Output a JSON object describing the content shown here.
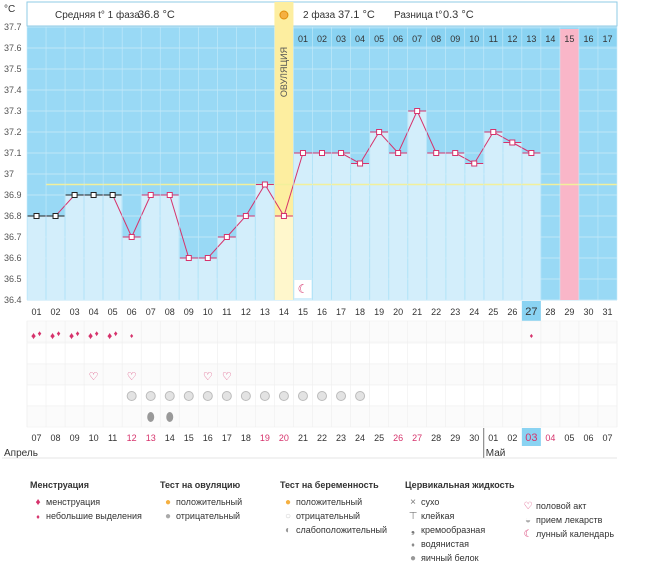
{
  "chart_data": {
    "type": "line",
    "y_unit_label": "°C",
    "header": {
      "phase1_label": "Средняя t° 1 фаза",
      "phase1_value": "36.8 °C",
      "phase2_label": "2 фаза",
      "phase2_value": "37.1 °C",
      "diff_label": "Разница t°",
      "diff_value": "0.3 °C"
    },
    "ylim": [
      36.4,
      37.7
    ],
    "y_ticks": [
      "36.4",
      "36.5",
      "36.6",
      "36.7",
      "36.8",
      "36.9",
      "37",
      "37.1",
      "37.2",
      "37.3",
      "37.4",
      "37.5",
      "37.6",
      "37.7"
    ],
    "coverline": 36.95,
    "cycle_days": [
      "01",
      "02",
      "03",
      "04",
      "05",
      "06",
      "07",
      "08",
      "09",
      "10",
      "11",
      "12",
      "13",
      "14",
      "15",
      "16",
      "17",
      "18",
      "19",
      "20",
      "21",
      "22",
      "23",
      "24",
      "25",
      "26",
      "27",
      "28",
      "29",
      "30",
      "31"
    ],
    "temperatures": [
      36.8,
      36.8,
      36.9,
      36.9,
      36.9,
      36.7,
      36.9,
      36.9,
      36.6,
      36.6,
      36.7,
      36.8,
      36.95,
      36.8,
      37.1,
      37.1,
      37.1,
      37.05,
      37.2,
      37.1,
      37.3,
      37.1,
      37.1,
      37.05,
      37.2,
      37.15,
      37.1,
      null,
      null,
      null,
      null
    ],
    "ovulation_day": 14,
    "ovulation_label": "ОВУЛЯЦИЯ",
    "phase2_header_days": [
      "01",
      "02",
      "03",
      "04",
      "05",
      "06",
      "07",
      "08",
      "09",
      "10",
      "11",
      "12",
      "13",
      "14",
      "15",
      "16",
      "17"
    ],
    "highlight_header_day": 15,
    "today_day": 27,
    "moon_day": 15,
    "menstruation_days": [
      1,
      2,
      3,
      4,
      5
    ],
    "spotting_days": [
      6,
      27
    ],
    "intercourse_days": [
      4,
      6,
      10,
      11
    ],
    "pills_days": [
      6,
      7,
      8,
      9,
      10,
      11,
      12,
      13,
      14,
      15,
      16,
      17,
      18
    ],
    "egg_white_days": [
      7,
      8
    ],
    "calendar_dates": [
      "07",
      "08",
      "09",
      "10",
      "11",
      "12",
      "13",
      "14",
      "15",
      "16",
      "17",
      "18",
      "19",
      "20",
      "21",
      "22",
      "23",
      "24",
      "25",
      "26",
      "27",
      "28",
      "29",
      "30",
      "01",
      "02",
      "03",
      "04",
      "05",
      "06",
      "07"
    ],
    "weekend_date_indices": [
      5,
      6,
      12,
      13,
      19,
      20,
      26,
      27
    ],
    "month_labels": [
      {
        "label": "Апрель",
        "start_index": 0
      },
      {
        "label": "Май",
        "start_index": 24
      }
    ],
    "colors": {
      "plot_bg": "#99d9f5",
      "bar_fill": "#d3eefb",
      "line": "#d6336c",
      "ovulation": "#fdeea0",
      "highlight_day": "#f9b6c8",
      "coverline": "#f2f09b",
      "accent": "#d6336c",
      "weekend": "#d6336c"
    }
  },
  "legend": {
    "menstruation": {
      "title": "Менструация",
      "items": [
        {
          "icon": "drops",
          "label": "менструация"
        },
        {
          "icon": "drop",
          "label": "небольшие выделения"
        }
      ]
    },
    "ovulation_test": {
      "title": "Тест на овуляцию",
      "items": [
        {
          "icon": "dot-orange",
          "label": "положительный"
        },
        {
          "icon": "dot-gray",
          "label": "отрицательный"
        }
      ]
    },
    "pregnancy_test": {
      "title": "Тест на беременность",
      "items": [
        {
          "icon": "dot-orange",
          "label": "положительный"
        },
        {
          "icon": "dot-white",
          "label": "отрицательный"
        },
        {
          "icon": "dot-half",
          "label": "слабоположительный"
        }
      ]
    },
    "cervical": {
      "title": "Цервикальная жидкость",
      "items": [
        {
          "icon": "x",
          "label": "сухо"
        },
        {
          "icon": "tee",
          "label": "клейкая"
        },
        {
          "icon": "comma",
          "label": "кремообразная"
        },
        {
          "icon": "drop-gray",
          "label": "водянистая"
        },
        {
          "icon": "egg",
          "label": "яичный белок"
        }
      ]
    },
    "other": {
      "items": [
        {
          "icon": "heart",
          "label": "половой акт"
        },
        {
          "icon": "pill",
          "label": "прием лекарств"
        },
        {
          "icon": "moon",
          "label": "лунный календарь"
        }
      ]
    }
  }
}
